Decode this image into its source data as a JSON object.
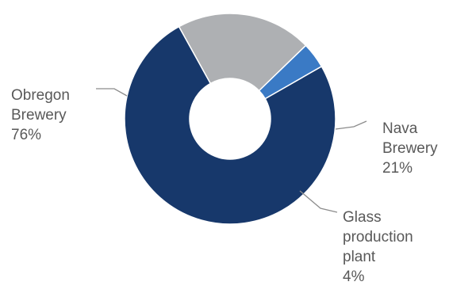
{
  "chart_data": {
    "type": "pie",
    "style": "donut",
    "title": "",
    "slices": [
      {
        "name": "Obregon Brewery",
        "value": 76,
        "label_lines": [
          "Obregon",
          "Brewery",
          "76%"
        ],
        "color": "#17386b"
      },
      {
        "name": "Nava Brewery",
        "value": 21,
        "label_lines": [
          "Nava",
          "Brewery",
          "21%"
        ],
        "color": "#aeb0b3"
      },
      {
        "name": "Glass production plant",
        "value": 4,
        "label_lines": [
          "Glass",
          "production",
          "plant",
          "4%"
        ],
        "color": "#3a7ac5"
      }
    ],
    "legend": "none",
    "leader_line_color": "#8c8c8c"
  }
}
